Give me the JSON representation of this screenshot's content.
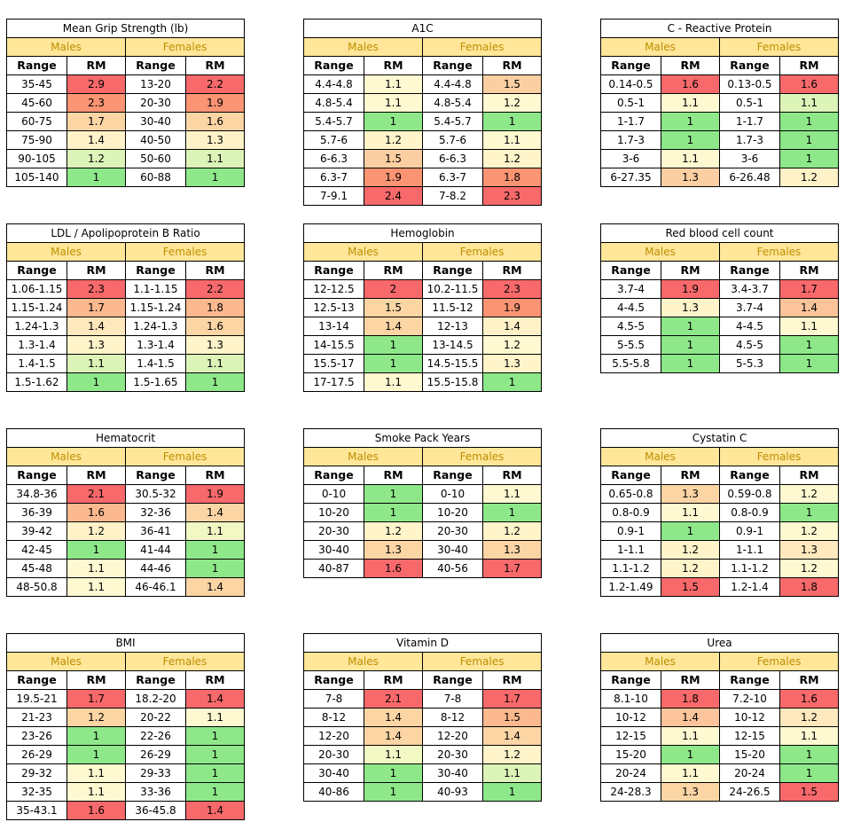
{
  "tables": [
    {
      "title": "Mean Grip Strength (lb)",
      "males_label": "Males",
      "females_label": "Females",
      "range_label": "Range",
      "rm_label": "RM",
      "rows": [
        {
          "m_range": "35-45",
          "m_rm": "2.9",
          "m_color": "#F8696B",
          "f_range": "13-20",
          "f_rm": "2.2",
          "f_color": "#F8696B"
        },
        {
          "m_range": "45-60",
          "m_rm": "2.3",
          "m_color": "#FA9473",
          "f_range": "20-30",
          "f_rm": "1.9",
          "f_color": "#FA9473"
        },
        {
          "m_range": "60-75",
          "m_rm": "1.7",
          "m_color": "#FCD5A5",
          "f_range": "30-40",
          "f_rm": "1.6",
          "f_color": "#FCD5A5"
        },
        {
          "m_range": "75-90",
          "m_rm": "1.4",
          "m_color": "#FFF2C8",
          "f_range": "40-50",
          "f_rm": "1.3",
          "f_color": "#FFF2C8"
        },
        {
          "m_range": "90-105",
          "m_rm": "1.2",
          "m_color": "#DDF4B8",
          "f_range": "50-60",
          "f_rm": "1.1",
          "f_color": "#DDF4B8"
        },
        {
          "m_range": "105-140",
          "m_rm": "1",
          "m_color": "#8EE88A",
          "f_range": "60-88",
          "f_rm": "1",
          "f_color": "#8EE88A"
        }
      ]
    },
    {
      "title": "A1C",
      "males_label": "Males",
      "females_label": "Females",
      "range_label": "Range",
      "rm_label": "RM",
      "rows": [
        {
          "m_range": "4.4-4.8",
          "m_rm": "1.1",
          "m_color": "#FFF9D1",
          "f_range": "4.4-4.8",
          "f_rm": "1.5",
          "f_color": "#FCCFA3"
        },
        {
          "m_range": "4.8-5.4",
          "m_rm": "1.1",
          "m_color": "#FFF9D1",
          "f_range": "4.8-5.4",
          "f_rm": "1.2",
          "f_color": "#FFF9D1"
        },
        {
          "m_range": "5.4-5.7",
          "m_rm": "1",
          "m_color": "#8EE88A",
          "f_range": "5.4-5.7",
          "f_rm": "1",
          "f_color": "#8EE88A"
        },
        {
          "m_range": "5.7-6",
          "m_rm": "1.2",
          "m_color": "#FFF4CA",
          "f_range": "5.7-6",
          "f_rm": "1.1",
          "f_color": "#FFF9D1"
        },
        {
          "m_range": "6-6.3",
          "m_rm": "1.5",
          "m_color": "#FCCFA3",
          "f_range": "6-6.3",
          "f_rm": "1.2",
          "f_color": "#FFF4CA"
        },
        {
          "m_range": "6.3-7",
          "m_rm": "1.9",
          "m_color": "#FA9473",
          "f_range": "6.3-7",
          "f_rm": "1.8",
          "f_color": "#FA9473"
        },
        {
          "m_range": "7-9.1",
          "m_rm": "2.4",
          "m_color": "#F8696B",
          "f_range": "7-8.2",
          "f_rm": "2.3",
          "f_color": "#F8696B"
        }
      ]
    },
    {
      "title": "C - Reactive Protein",
      "males_label": "Males",
      "females_label": "Females",
      "range_label": "Range",
      "rm_label": "RM",
      "rows": [
        {
          "m_range": "0.14-0.5",
          "m_rm": "1.6",
          "m_color": "#F8696B",
          "f_range": "0.13-0.5",
          "f_rm": "1.6",
          "f_color": "#F8696B"
        },
        {
          "m_range": "0.5-1",
          "m_rm": "1.1",
          "m_color": "#FFF9D1",
          "f_range": "0.5-1",
          "f_rm": "1.1",
          "f_color": "#DDF4B8"
        },
        {
          "m_range": "1-1.7",
          "m_rm": "1",
          "m_color": "#8EE88A",
          "f_range": "1-1.7",
          "f_rm": "1",
          "f_color": "#8EE88A"
        },
        {
          "m_range": "1.7-3",
          "m_rm": "1",
          "m_color": "#8EE88A",
          "f_range": "1.7-3",
          "f_rm": "1",
          "f_color": "#8EE88A"
        },
        {
          "m_range": "3-6",
          "m_rm": "1.1",
          "m_color": "#FFF9D1",
          "f_range": "3-6",
          "f_rm": "1",
          "f_color": "#8EE88A"
        },
        {
          "m_range": "6-27.35",
          "m_rm": "1.3",
          "m_color": "#FCCFA3",
          "f_range": "6-26.48",
          "f_rm": "1.2",
          "f_color": "#FFF2C8"
        }
      ]
    },
    {
      "title": "LDL / Apolipoprotein B Ratio",
      "males_label": "Males",
      "females_label": "Females",
      "range_label": "Range",
      "rm_label": "RM",
      "rows": [
        {
          "m_range": "1.06-1.15",
          "m_rm": "2.3",
          "m_color": "#F8696B",
          "f_range": "1.1-1.15",
          "f_rm": "2.2",
          "f_color": "#F8696B"
        },
        {
          "m_range": "1.15-1.24",
          "m_rm": "1.7",
          "m_color": "#FCB88E",
          "f_range": "1.15-1.24",
          "f_rm": "1.8",
          "f_color": "#FCB88E"
        },
        {
          "m_range": "1.24-1.3",
          "m_rm": "1.4",
          "m_color": "#FFE8BD",
          "f_range": "1.24-1.3",
          "f_rm": "1.6",
          "f_color": "#FCD5A5"
        },
        {
          "m_range": "1.3-1.4",
          "m_rm": "1.3",
          "m_color": "#FFF4CA",
          "f_range": "1.3-1.4",
          "f_rm": "1.3",
          "f_color": "#FFF4CA"
        },
        {
          "m_range": "1.4-1.5",
          "m_rm": "1.1",
          "m_color": "#DDF4B8",
          "f_range": "1.4-1.5",
          "f_rm": "1.1",
          "f_color": "#DDF4B8"
        },
        {
          "m_range": "1.5-1.62",
          "m_rm": "1",
          "m_color": "#8EE88A",
          "f_range": "1.5-1.65",
          "f_rm": "1",
          "f_color": "#8EE88A"
        }
      ]
    },
    {
      "title": "Hemoglobin",
      "males_label": "Males",
      "females_label": "Females",
      "range_label": "Range",
      "rm_label": "RM",
      "rows": [
        {
          "m_range": "12-12.5",
          "m_rm": "2",
          "m_color": "#F8696B",
          "f_range": "10.2-11.5",
          "f_rm": "2.3",
          "f_color": "#F8696B"
        },
        {
          "m_range": "12.5-13",
          "m_rm": "1.5",
          "m_color": "#FCD5A5",
          "f_range": "11.5-12",
          "f_rm": "1.9",
          "f_color": "#FA9473"
        },
        {
          "m_range": "13-14",
          "m_rm": "1.4",
          "m_color": "#FCD5A5",
          "f_range": "12-13",
          "f_rm": "1.4",
          "f_color": "#FFF2C8"
        },
        {
          "m_range": "14-15.5",
          "m_rm": "1",
          "m_color": "#8EE88A",
          "f_range": "13-14.5",
          "f_rm": "1.2",
          "f_color": "#FFF9D1"
        },
        {
          "m_range": "15.5-17",
          "m_rm": "1",
          "m_color": "#8EE88A",
          "f_range": "14.5-15.5",
          "f_rm": "1.3",
          "f_color": "#FFF4CA"
        },
        {
          "m_range": "17-17.5",
          "m_rm": "1.1",
          "m_color": "#FFF9D1",
          "f_range": "15.5-15.8",
          "f_rm": "1",
          "f_color": "#8EE88A"
        }
      ]
    },
    {
      "title": "Red blood cell count",
      "males_label": "Males",
      "females_label": "Females",
      "range_label": "Range",
      "rm_label": "RM",
      "rows": [
        {
          "m_range": "3.7-4",
          "m_rm": "1.9",
          "m_color": "#F8696B",
          "f_range": "3.4-3.7",
          "f_rm": "1.7",
          "f_color": "#F8696B"
        },
        {
          "m_range": "4-4.5",
          "m_rm": "1.3",
          "m_color": "#FFF4CA",
          "f_range": "3.7-4",
          "f_rm": "1.4",
          "f_color": "#FCC49A"
        },
        {
          "m_range": "4.5-5",
          "m_rm": "1",
          "m_color": "#8EE88A",
          "f_range": "4-4.5",
          "f_rm": "1.1",
          "f_color": "#FFF9D1"
        },
        {
          "m_range": "5-5.5",
          "m_rm": "1",
          "m_color": "#8EE88A",
          "f_range": "4.5-5",
          "f_rm": "1",
          "f_color": "#8EE88A"
        },
        {
          "m_range": "5.5-5.8",
          "m_rm": "1",
          "m_color": "#8EE88A",
          "f_range": "5-5.3",
          "f_rm": "1",
          "f_color": "#8EE88A"
        }
      ]
    },
    {
      "title": "Hematocrit",
      "males_label": "Males",
      "females_label": "Females",
      "range_label": "Range",
      "rm_label": "RM",
      "rows": [
        {
          "m_range": "34.8-36",
          "m_rm": "2.1",
          "m_color": "#F8696B",
          "f_range": "30.5-32",
          "f_rm": "1.9",
          "f_color": "#F8696B"
        },
        {
          "m_range": "36-39",
          "m_rm": "1.6",
          "m_color": "#FCB88E",
          "f_range": "32-36",
          "f_rm": "1.4",
          "f_color": "#FCD5A5"
        },
        {
          "m_range": "39-42",
          "m_rm": "1.2",
          "m_color": "#FFF2C8",
          "f_range": "36-41",
          "f_rm": "1.1",
          "f_color": "#F1F8C4"
        },
        {
          "m_range": "42-45",
          "m_rm": "1",
          "m_color": "#8EE88A",
          "f_range": "41-44",
          "f_rm": "1",
          "f_color": "#8EE88A"
        },
        {
          "m_range": "45-48",
          "m_rm": "1.1",
          "m_color": "#FFF9D1",
          "f_range": "44-46",
          "f_rm": "1",
          "f_color": "#8EE88A"
        },
        {
          "m_range": "48-50.8",
          "m_rm": "1.1",
          "m_color": "#FFF9D1",
          "f_range": "46-46.1",
          "f_rm": "1.4",
          "f_color": "#FCD5A5"
        }
      ]
    },
    {
      "title": "Smoke Pack Years",
      "males_label": "Males",
      "females_label": "Females",
      "range_label": "Range",
      "rm_label": "RM",
      "rows": [
        {
          "m_range": "0-10",
          "m_rm": "1",
          "m_color": "#8EE88A",
          "f_range": "0-10",
          "f_rm": "1.1",
          "f_color": "#FFF9D1"
        },
        {
          "m_range": "10-20",
          "m_rm": "1",
          "m_color": "#8EE88A",
          "f_range": "10-20",
          "f_rm": "1",
          "f_color": "#8EE88A"
        },
        {
          "m_range": "20-30",
          "m_rm": "1.2",
          "m_color": "#FFF4CA",
          "f_range": "20-30",
          "f_rm": "1.2",
          "f_color": "#FFF4CA"
        },
        {
          "m_range": "30-40",
          "m_rm": "1.3",
          "m_color": "#FCD5A5",
          "f_range": "30-40",
          "f_rm": "1.3",
          "f_color": "#FCD5A5"
        },
        {
          "m_range": "40-87",
          "m_rm": "1.6",
          "m_color": "#F8696B",
          "f_range": "40-56",
          "f_rm": "1.7",
          "f_color": "#F8696B"
        }
      ]
    },
    {
      "title": "Cystatin C",
      "males_label": "Males",
      "females_label": "Females",
      "range_label": "Range",
      "rm_label": "RM",
      "rows": [
        {
          "m_range": "0.65-0.8",
          "m_rm": "1.3",
          "m_color": "#FCD5A5",
          "f_range": "0.59-0.8",
          "f_rm": "1.2",
          "f_color": "#FFF9D1"
        },
        {
          "m_range": "0.8-0.9",
          "m_rm": "1.1",
          "m_color": "#FFF9D1",
          "f_range": "0.8-0.9",
          "f_rm": "1",
          "f_color": "#8EE88A"
        },
        {
          "m_range": "0.9-1",
          "m_rm": "1",
          "m_color": "#8EE88A",
          "f_range": "0.9-1",
          "f_rm": "1.2",
          "f_color": "#FFF9D1"
        },
        {
          "m_range": "1-1.1",
          "m_rm": "1.2",
          "m_color": "#FFF4CA",
          "f_range": "1-1.1",
          "f_rm": "1.3",
          "f_color": "#FFE8BD"
        },
        {
          "m_range": "1.1-1.2",
          "m_rm": "1.2",
          "m_color": "#FFF4CA",
          "f_range": "1.1-1.2",
          "f_rm": "1.2",
          "f_color": "#FFF9D1"
        },
        {
          "m_range": "1.2-1.49",
          "m_rm": "1.5",
          "m_color": "#F8696B",
          "f_range": "1.2-1.4",
          "f_rm": "1.8",
          "f_color": "#F8696B"
        }
      ]
    },
    {
      "title": "BMI",
      "males_label": "Males",
      "females_label": "Females",
      "range_label": "Range",
      "rm_label": "RM",
      "rows": [
        {
          "m_range": "19.5-21",
          "m_rm": "1.7",
          "m_color": "#F8696B",
          "f_range": "18.2-20",
          "f_rm": "1.4",
          "f_color": "#F8696B"
        },
        {
          "m_range": "21-23",
          "m_rm": "1.2",
          "m_color": "#FCD5A5",
          "f_range": "20-22",
          "f_rm": "1.1",
          "f_color": "#FFF9D1"
        },
        {
          "m_range": "23-26",
          "m_rm": "1",
          "m_color": "#8EE88A",
          "f_range": "22-26",
          "f_rm": "1",
          "f_color": "#8EE88A"
        },
        {
          "m_range": "26-29",
          "m_rm": "1",
          "m_color": "#8EE88A",
          "f_range": "26-29",
          "f_rm": "1",
          "f_color": "#8EE88A"
        },
        {
          "m_range": "29-32",
          "m_rm": "1.1",
          "m_color": "#FFF9D1",
          "f_range": "29-33",
          "f_rm": "1",
          "f_color": "#8EE88A"
        },
        {
          "m_range": "32-35",
          "m_rm": "1.1",
          "m_color": "#FFF9D1",
          "f_range": "33-36",
          "f_rm": "1",
          "f_color": "#8EE88A"
        },
        {
          "m_range": "35-43.1",
          "m_rm": "1.6",
          "m_color": "#F8696B",
          "f_range": "36-45.8",
          "f_rm": "1.4",
          "f_color": "#F8696B"
        }
      ]
    },
    {
      "title": "Vitamin D",
      "males_label": "Males",
      "females_label": "Females",
      "range_label": "Range",
      "rm_label": "RM",
      "rows": [
        {
          "m_range": "7-8",
          "m_rm": "2.1",
          "m_color": "#F8696B",
          "f_range": "7-8",
          "f_rm": "1.7",
          "f_color": "#F8696B"
        },
        {
          "m_range": "8-12",
          "m_rm": "1.4",
          "m_color": "#FCD5A5",
          "f_range": "8-12",
          "f_rm": "1.5",
          "f_color": "#FCB88E"
        },
        {
          "m_range": "12-20",
          "m_rm": "1.4",
          "m_color": "#FCD5A5",
          "f_range": "12-20",
          "f_rm": "1.4",
          "f_color": "#FCD5A5"
        },
        {
          "m_range": "20-30",
          "m_rm": "1.1",
          "m_color": "#F1F8C4",
          "f_range": "20-30",
          "f_rm": "1.2",
          "f_color": "#FFF4CA"
        },
        {
          "m_range": "30-40",
          "m_rm": "1",
          "m_color": "#8EE88A",
          "f_range": "30-40",
          "f_rm": "1.1",
          "f_color": "#DDF4B8"
        },
        {
          "m_range": "40-86",
          "m_rm": "1",
          "m_color": "#8EE88A",
          "f_range": "40-93",
          "f_rm": "1",
          "f_color": "#8EE88A"
        }
      ]
    },
    {
      "title": "Urea",
      "males_label": "Males",
      "females_label": "Females",
      "range_label": "Range",
      "rm_label": "RM",
      "rows": [
        {
          "m_range": "8.1-10",
          "m_rm": "1.8",
          "m_color": "#F8696B",
          "f_range": "7.2-10",
          "f_rm": "1.6",
          "f_color": "#F8696B"
        },
        {
          "m_range": "10-12",
          "m_rm": "1.4",
          "m_color": "#FCC49A",
          "f_range": "10-12",
          "f_rm": "1.2",
          "f_color": "#FFE8BD"
        },
        {
          "m_range": "12-15",
          "m_rm": "1.1",
          "m_color": "#FFF9D1",
          "f_range": "12-15",
          "f_rm": "1.1",
          "f_color": "#FFF9D1"
        },
        {
          "m_range": "15-20",
          "m_rm": "1",
          "m_color": "#8EE88A",
          "f_range": "15-20",
          "f_rm": "1",
          "f_color": "#8EE88A"
        },
        {
          "m_range": "20-24",
          "m_rm": "1.1",
          "m_color": "#FFF9D1",
          "f_range": "20-24",
          "f_rm": "1",
          "f_color": "#8EE88A"
        },
        {
          "m_range": "24-28.3",
          "m_rm": "1.3",
          "m_color": "#FCD5A5",
          "f_range": "24-26.5",
          "f_rm": "1.5",
          "f_color": "#F8696B"
        }
      ]
    }
  ]
}
